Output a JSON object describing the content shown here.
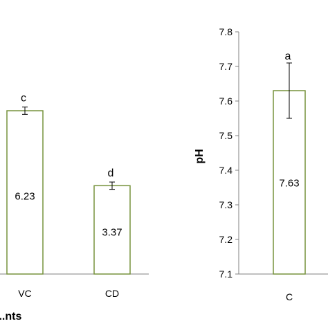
{
  "colors": {
    "bar_fill": "#ffffff",
    "bar_stroke": "#76923c",
    "axis": "#808080",
    "text": "#000000"
  },
  "chart_data": [
    {
      "type": "bar",
      "title": "",
      "xlabel": "...nts",
      "ylabel": "",
      "categories": [
        "VC",
        "CD"
      ],
      "values": [
        6.23,
        3.37
      ],
      "value_labels": [
        "6.23",
        "3.37"
      ],
      "letters": [
        "c",
        "d"
      ],
      "error": [
        0.14,
        0.14
      ],
      "ylim": [
        0,
        9.24
      ],
      "grid": false,
      "legend": "none"
    },
    {
      "type": "bar",
      "title": "",
      "xlabel": "",
      "ylabel": "pH",
      "categories": [
        "C"
      ],
      "values": [
        7.63
      ],
      "value_labels": [
        "7.63"
      ],
      "letters": [
        "a"
      ],
      "error": [
        0.08
      ],
      "ylim": [
        7.1,
        7.8
      ],
      "yticks": [
        "7.1",
        "7.2",
        "7.3",
        "7.4",
        "7.5",
        "7.6",
        "7.7",
        "7.8"
      ],
      "grid": false,
      "legend": "none"
    }
  ]
}
